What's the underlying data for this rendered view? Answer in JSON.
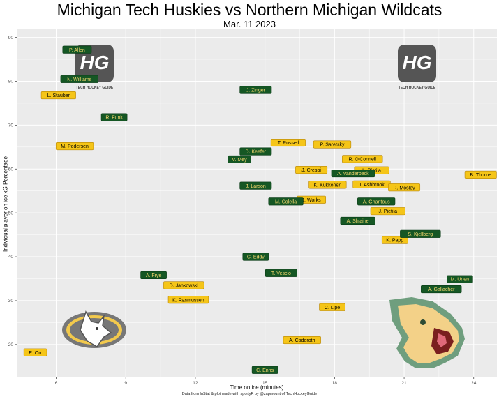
{
  "title": "Michigan Tech Huskies vs Northern Michigan Wildcats",
  "subtitle": "Mar. 11 2023",
  "xlabel": "Time on ice (minutes)",
  "ylabel": "Individual player on ice xG Percentage",
  "caption": "Data from InStat & plot made with sportyR by @zapmount of TechHockeyGuide",
  "logo_text": "TECH HOCKEY GUIDE",
  "colors": {
    "panel": "#ebebeb",
    "grid": "#ffffff",
    "mtu_fill": "#f5c518",
    "mtu_text": "#000000",
    "nmu_fill": "#155724",
    "nmu_text": "#f5d76e"
  },
  "chart_data": {
    "type": "scatter",
    "xlim": [
      4.3,
      25
    ],
    "ylim": [
      12.5,
      92
    ],
    "xticks": [
      6,
      9,
      12,
      15,
      18,
      21,
      24
    ],
    "yticks": [
      20,
      30,
      40,
      50,
      60,
      70,
      80,
      90
    ],
    "grid": true,
    "series": [
      {
        "name": "Michigan Tech Huskies",
        "color": "#f5c518",
        "points": [
          {
            "label": "L. Stauber",
            "x": 6.1,
            "y": 76.8
          },
          {
            "label": "M. Pedersen",
            "x": 6.8,
            "y": 65.2
          },
          {
            "label": "T. Russell",
            "x": 16.0,
            "y": 66.0
          },
          {
            "label": "P. Saretsky",
            "x": 17.9,
            "y": 65.6
          },
          {
            "label": "R. O'Connell",
            "x": 19.2,
            "y": 62.3
          },
          {
            "label": "J. Crespi",
            "x": 17.0,
            "y": 59.8
          },
          {
            "label": "L. Pietila",
            "x": 19.6,
            "y": 59.7
          },
          {
            "label": "B. Thorne",
            "x": 24.3,
            "y": 58.7
          },
          {
            "label": "K. Kukkonen",
            "x": 17.7,
            "y": 56.4
          },
          {
            "label": "T. Ashbrook",
            "x": 19.6,
            "y": 56.5
          },
          {
            "label": "R. Mosley",
            "x": 21.0,
            "y": 55.8
          },
          {
            "label": "J. Works",
            "x": 17.0,
            "y": 53.0
          },
          {
            "label": "J. Pietila",
            "x": 20.3,
            "y": 50.4
          },
          {
            "label": "K. Papp",
            "x": 20.6,
            "y": 43.8
          },
          {
            "label": "D. Jankowski",
            "x": 11.5,
            "y": 33.5
          },
          {
            "label": "K. Rasmussen",
            "x": 11.7,
            "y": 30.2
          },
          {
            "label": "C. Lipe",
            "x": 17.9,
            "y": 28.5
          },
          {
            "label": "A. Caderoth",
            "x": 16.6,
            "y": 21.0
          },
          {
            "label": "E. Orr",
            "x": 5.1,
            "y": 18.2
          }
        ]
      },
      {
        "name": "Northern Michigan Wildcats",
        "color": "#155724",
        "points": [
          {
            "label": "P. Allen",
            "x": 6.9,
            "y": 87.2
          },
          {
            "label": "N. Williams",
            "x": 7.0,
            "y": 80.5
          },
          {
            "label": "J. Zinger",
            "x": 14.6,
            "y": 78.0
          },
          {
            "label": "R. Funk",
            "x": 8.5,
            "y": 71.8
          },
          {
            "label": "D. Keefer",
            "x": 14.6,
            "y": 64.0
          },
          {
            "label": "V. Mey",
            "x": 13.9,
            "y": 62.2
          },
          {
            "label": "A. Vanderbeck",
            "x": 18.8,
            "y": 59.0
          },
          {
            "label": "J. Larson",
            "x": 14.6,
            "y": 56.2
          },
          {
            "label": "M. Colella",
            "x": 15.9,
            "y": 52.6
          },
          {
            "label": "A. Ghantous",
            "x": 19.8,
            "y": 52.6
          },
          {
            "label": "A. Shlaine",
            "x": 19.0,
            "y": 48.2
          },
          {
            "label": "S. Kjellberg",
            "x": 21.7,
            "y": 45.2
          },
          {
            "label": "C. Eddy",
            "x": 14.6,
            "y": 40.0
          },
          {
            "label": "T. Vescio",
            "x": 15.7,
            "y": 36.3
          },
          {
            "label": "A. Frye",
            "x": 10.2,
            "y": 35.8
          },
          {
            "label": "M. Unen",
            "x": 23.4,
            "y": 34.9
          },
          {
            "label": "A. Gallacher",
            "x": 22.6,
            "y": 32.6
          },
          {
            "label": "C. Enns",
            "x": 15.0,
            "y": 14.2
          }
        ]
      }
    ]
  }
}
